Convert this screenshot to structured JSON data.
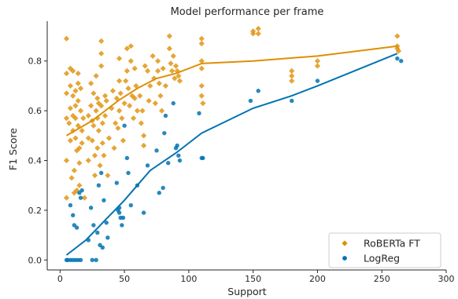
{
  "chart_data": {
    "type": "scatter",
    "title": "Model performance per frame",
    "xlabel": "Support",
    "ylabel": "F1 Score",
    "xlim": [
      -10,
      300
    ],
    "ylim": [
      -0.04,
      0.96
    ],
    "x_ticks": [
      0,
      50,
      100,
      150,
      200,
      250,
      300
    ],
    "y_ticks": [
      0.0,
      0.2,
      0.4,
      0.6,
      0.8
    ],
    "grid": false,
    "legend_position": "bottom-right",
    "series": [
      {
        "name": "RoBERTa FT",
        "color": "#de8f05",
        "marker": "diamond",
        "points": [
          [
            5,
            0.89
          ],
          [
            5,
            0.57
          ],
          [
            5,
            0.4
          ],
          [
            5,
            0.25
          ],
          [
            5,
            0.67
          ],
          [
            5,
            0.75
          ],
          [
            7,
            0.55
          ],
          [
            8,
            0.77
          ],
          [
            8,
            0.7
          ],
          [
            8,
            0.61
          ],
          [
            8,
            0.48
          ],
          [
            9,
            0.33
          ],
          [
            10,
            0.76
          ],
          [
            10,
            0.66
          ],
          [
            10,
            0.58
          ],
          [
            10,
            0.52
          ],
          [
            11,
            0.36
          ],
          [
            11,
            0.27
          ],
          [
            12,
            0.68
          ],
          [
            12,
            0.62
          ],
          [
            12,
            0.57
          ],
          [
            12,
            0.49
          ],
          [
            13,
            0.44
          ],
          [
            13,
            0.28
          ],
          [
            14,
            0.75
          ],
          [
            14,
            0.71
          ],
          [
            14,
            0.64
          ],
          [
            14,
            0.54
          ],
          [
            15,
            0.45
          ],
          [
            15,
            0.39
          ],
          [
            15,
            0.3
          ],
          [
            16,
            0.69
          ],
          [
            16,
            0.6
          ],
          [
            17,
            0.52
          ],
          [
            17,
            0.47
          ],
          [
            18,
            0.57
          ],
          [
            19,
            0.25
          ],
          [
            22,
            0.58
          ],
          [
            22,
            0.49
          ],
          [
            22,
            0.4
          ],
          [
            24,
            0.71
          ],
          [
            24,
            0.62
          ],
          [
            25,
            0.56
          ],
          [
            25,
            0.48
          ],
          [
            26,
            0.67
          ],
          [
            26,
            0.54
          ],
          [
            27,
            0.42
          ],
          [
            27,
            0.34
          ],
          [
            28,
            0.74
          ],
          [
            28,
            0.6
          ],
          [
            29,
            0.65
          ],
          [
            29,
            0.57
          ],
          [
            29,
            0.45
          ],
          [
            30,
            0.63
          ],
          [
            30,
            0.52
          ],
          [
            31,
            0.38
          ],
          [
            32,
            0.88
          ],
          [
            32,
            0.83
          ],
          [
            32,
            0.78
          ],
          [
            32,
            0.62
          ],
          [
            33,
            0.55
          ],
          [
            33,
            0.47
          ],
          [
            34,
            0.42
          ],
          [
            35,
            0.66
          ],
          [
            35,
            0.58
          ],
          [
            36,
            0.64
          ],
          [
            37,
            0.34
          ],
          [
            38,
            0.49
          ],
          [
            40,
            0.61
          ],
          [
            41,
            0.68
          ],
          [
            42,
            0.45
          ],
          [
            43,
            0.55
          ],
          [
            44,
            0.65
          ],
          [
            45,
            0.53
          ],
          [
            46,
            0.81
          ],
          [
            46,
            0.72
          ],
          [
            46,
            0.6
          ],
          [
            47,
            0.67
          ],
          [
            48,
            0.57
          ],
          [
            49,
            0.48
          ],
          [
            50,
            0.63
          ],
          [
            51,
            0.72
          ],
          [
            52,
            0.85
          ],
          [
            52,
            0.76
          ],
          [
            53,
            0.69
          ],
          [
            54,
            0.62
          ],
          [
            55,
            0.86
          ],
          [
            55,
            0.8
          ],
          [
            56,
            0.66
          ],
          [
            57,
            0.57
          ],
          [
            58,
            0.77
          ],
          [
            58,
            0.65
          ],
          [
            59,
            0.7
          ],
          [
            60,
            0.6
          ],
          [
            62,
            0.66
          ],
          [
            63,
            0.55
          ],
          [
            64,
            0.6
          ],
          [
            65,
            0.46
          ],
          [
            65,
            0.5
          ],
          [
            66,
            0.78
          ],
          [
            68,
            0.76
          ],
          [
            69,
            0.64
          ],
          [
            70,
            0.7
          ],
          [
            72,
            0.82
          ],
          [
            73,
            0.73
          ],
          [
            74,
            0.63
          ],
          [
            76,
            0.8
          ],
          [
            76,
            0.76
          ],
          [
            77,
            0.71
          ],
          [
            78,
            0.66
          ],
          [
            79,
            0.6
          ],
          [
            80,
            0.77
          ],
          [
            82,
            0.7
          ],
          [
            85,
            0.9
          ],
          [
            85,
            0.85
          ],
          [
            86,
            0.79
          ],
          [
            87,
            0.76
          ],
          [
            88,
            0.82
          ],
          [
            89,
            0.73
          ],
          [
            90,
            0.78
          ],
          [
            91,
            0.76
          ],
          [
            92,
            0.74
          ],
          [
            93,
            0.72
          ],
          [
            110,
            0.89
          ],
          [
            110,
            0.87
          ],
          [
            110,
            0.8
          ],
          [
            110,
            0.77
          ],
          [
            110,
            0.7
          ],
          [
            110,
            0.66
          ],
          [
            111,
            0.63
          ],
          [
            150,
            0.92
          ],
          [
            150,
            0.91
          ],
          [
            154,
            0.93
          ],
          [
            154,
            0.91
          ],
          [
            180,
            0.76
          ],
          [
            180,
            0.74
          ],
          [
            180,
            0.72
          ],
          [
            200,
            0.8
          ],
          [
            200,
            0.78
          ],
          [
            262,
            0.9
          ],
          [
            262,
            0.86
          ],
          [
            262,
            0.85
          ],
          [
            263,
            0.84
          ]
        ],
        "trend": [
          [
            5,
            0.5
          ],
          [
            25,
            0.56
          ],
          [
            45,
            0.64
          ],
          [
            60,
            0.69
          ],
          [
            75,
            0.73
          ],
          [
            90,
            0.75
          ],
          [
            110,
            0.79
          ],
          [
            150,
            0.8
          ],
          [
            200,
            0.82
          ],
          [
            262,
            0.86
          ]
        ]
      },
      {
        "name": "LogReg",
        "color": "#0173b2",
        "marker": "circle",
        "points": [
          [
            5,
            0.0
          ],
          [
            6,
            0.0
          ],
          [
            8,
            0.0
          ],
          [
            8,
            0.22
          ],
          [
            10,
            0.18
          ],
          [
            10,
            0.0
          ],
          [
            11,
            0.14
          ],
          [
            12,
            0.0
          ],
          [
            13,
            0.13
          ],
          [
            14,
            0.0
          ],
          [
            15,
            0.27
          ],
          [
            16,
            0.0
          ],
          [
            16,
            0.25
          ],
          [
            17,
            0.28
          ],
          [
            22,
            0.08
          ],
          [
            24,
            0.21
          ],
          [
            25,
            0.0
          ],
          [
            26,
            0.14
          ],
          [
            28,
            0.0
          ],
          [
            29,
            0.11
          ],
          [
            30,
            0.3
          ],
          [
            31,
            0.06
          ],
          [
            32,
            0.35
          ],
          [
            33,
            0.05
          ],
          [
            34,
            0.24
          ],
          [
            36,
            0.15
          ],
          [
            37,
            0.09
          ],
          [
            44,
            0.31
          ],
          [
            45,
            0.2
          ],
          [
            46,
            0.21
          ],
          [
            46,
            0.19
          ],
          [
            47,
            0.17
          ],
          [
            48,
            0.14
          ],
          [
            49,
            0.17
          ],
          [
            50,
            0.54
          ],
          [
            52,
            0.41
          ],
          [
            53,
            0.35
          ],
          [
            55,
            0.22
          ],
          [
            60,
            0.3
          ],
          [
            65,
            0.19
          ],
          [
            68,
            0.38
          ],
          [
            75,
            0.44
          ],
          [
            77,
            0.27
          ],
          [
            80,
            0.29
          ],
          [
            81,
            0.51
          ],
          [
            82,
            0.58
          ],
          [
            84,
            0.39
          ],
          [
            88,
            0.63
          ],
          [
            90,
            0.45
          ],
          [
            91,
            0.46
          ],
          [
            92,
            0.42
          ],
          [
            93,
            0.4
          ],
          [
            108,
            0.59
          ],
          [
            110,
            0.41
          ],
          [
            111,
            0.41
          ],
          [
            148,
            0.64
          ],
          [
            154,
            0.68
          ],
          [
            180,
            0.64
          ],
          [
            200,
            0.72
          ],
          [
            262,
            0.81
          ],
          [
            265,
            0.8
          ]
        ],
        "trend": [
          [
            5,
            0.02
          ],
          [
            20,
            0.08
          ],
          [
            35,
            0.16
          ],
          [
            50,
            0.24
          ],
          [
            70,
            0.36
          ],
          [
            90,
            0.43
          ],
          [
            110,
            0.51
          ],
          [
            150,
            0.61
          ],
          [
            180,
            0.66
          ],
          [
            200,
            0.7
          ],
          [
            262,
            0.83
          ]
        ]
      }
    ]
  }
}
